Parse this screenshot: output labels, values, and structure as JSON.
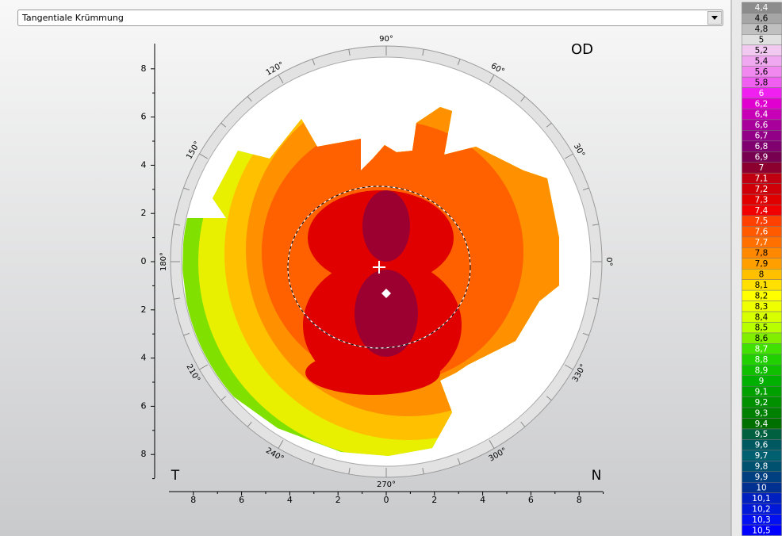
{
  "dropdown": {
    "label": "Tangentiale Krümmung"
  },
  "map": {
    "eye": "OD",
    "left_label": "T",
    "right_label": "N",
    "y_axis_ticks": [
      "8",
      "6",
      "4",
      "2",
      "0",
      "2",
      "4",
      "6",
      "8"
    ],
    "x_axis_ticks": [
      "8",
      "6",
      "4",
      "2",
      "0",
      "2",
      "4",
      "6",
      "8"
    ],
    "angle_labels": [
      {
        "angle": 0,
        "label": "0°"
      },
      {
        "angle": 30,
        "label": "30°"
      },
      {
        "angle": 60,
        "label": "60°"
      },
      {
        "angle": 90,
        "label": "90°"
      },
      {
        "angle": 120,
        "label": "120°"
      },
      {
        "angle": 150,
        "label": "150°"
      },
      {
        "angle": 180,
        "label": "180°"
      },
      {
        "angle": 210,
        "label": "210°"
      },
      {
        "angle": 240,
        "label": "240°"
      },
      {
        "angle": 270,
        "label": "270°"
      },
      {
        "angle": 300,
        "label": "300°"
      },
      {
        "angle": 330,
        "label": "330°"
      }
    ]
  },
  "scale": [
    {
      "label": "4,4",
      "color": "#8c8c8c"
    },
    {
      "label": "4,6",
      "color": "#a6a6a6"
    },
    {
      "label": "4,8",
      "color": "#c0c0c0"
    },
    {
      "label": "5",
      "color": "#e0e0e0"
    },
    {
      "label": "5,2",
      "color": "#f0c8f0"
    },
    {
      "label": "5,4",
      "color": "#f0a8f0"
    },
    {
      "label": "5,6",
      "color": "#f088f0"
    },
    {
      "label": "5,8",
      "color": "#f060f0"
    },
    {
      "label": "6",
      "color": "#f020f0"
    },
    {
      "label": "6,2",
      "color": "#e000d0"
    },
    {
      "label": "6,4",
      "color": "#c800b8"
    },
    {
      "label": "6,6",
      "color": "#a8009a"
    },
    {
      "label": "6,7",
      "color": "#920088"
    },
    {
      "label": "6,8",
      "color": "#800070"
    },
    {
      "label": "6,9",
      "color": "#780050"
    },
    {
      "label": "7",
      "color": "#8c0030"
    },
    {
      "label": "7,1",
      "color": "#c00010"
    },
    {
      "label": "7,2",
      "color": "#d00008"
    },
    {
      "label": "7,3",
      "color": "#e00000"
    },
    {
      "label": "7,4",
      "color": "#f00000"
    },
    {
      "label": "7,5",
      "color": "#ff4000"
    },
    {
      "label": "7,6",
      "color": "#ff5a00"
    },
    {
      "label": "7,7",
      "color": "#ff7000"
    },
    {
      "label": "7,8",
      "color": "#ff8800"
    },
    {
      "label": "7,9",
      "color": "#ffa000"
    },
    {
      "label": "8",
      "color": "#ffc000"
    },
    {
      "label": "8,1",
      "color": "#ffe000"
    },
    {
      "label": "8,2",
      "color": "#ffff00"
    },
    {
      "label": "8,3",
      "color": "#f0ff00"
    },
    {
      "label": "8,4",
      "color": "#d8ff00"
    },
    {
      "label": "8,5",
      "color": "#b8ff00"
    },
    {
      "label": "8,6",
      "color": "#80f000"
    },
    {
      "label": "8,7",
      "color": "#40e000"
    },
    {
      "label": "8,8",
      "color": "#20d000"
    },
    {
      "label": "8,9",
      "color": "#10c000"
    },
    {
      "label": "9",
      "color": "#00b000"
    },
    {
      "label": "9,1",
      "color": "#00a000"
    },
    {
      "label": "9,2",
      "color": "#009000"
    },
    {
      "label": "9,3",
      "color": "#008000"
    },
    {
      "label": "9,4",
      "color": "#007000"
    },
    {
      "label": "9,5",
      "color": "#006040"
    },
    {
      "label": "9,6",
      "color": "#005860"
    },
    {
      "label": "9,7",
      "color": "#006070"
    },
    {
      "label": "9,8",
      "color": "#005070"
    },
    {
      "label": "9,9",
      "color": "#004080"
    },
    {
      "label": "10",
      "color": "#003090"
    },
    {
      "label": "10,1",
      "color": "#0020c0"
    },
    {
      "label": "10,2",
      "color": "#0018d8"
    },
    {
      "label": "10,3",
      "color": "#0010f0"
    },
    {
      "label": "10,5",
      "color": "#0000ff"
    }
  ]
}
